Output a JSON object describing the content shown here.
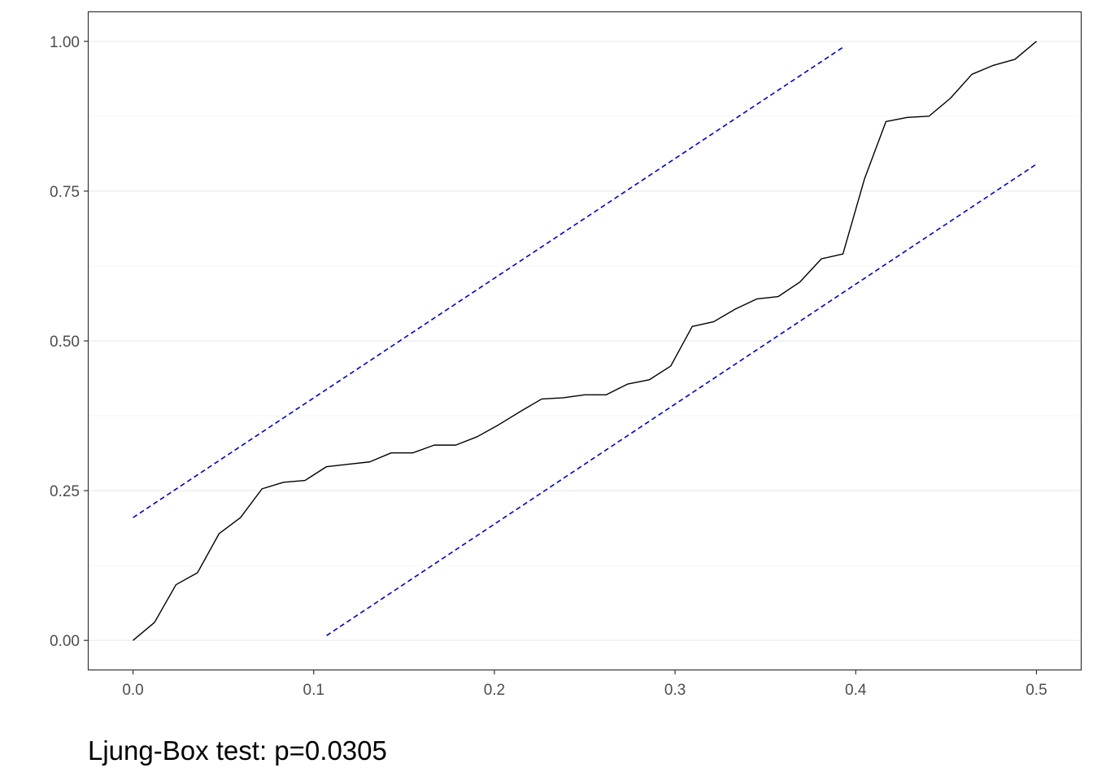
{
  "chart_data": {
    "type": "line",
    "caption": "Ljung-Box test: p=0.0305",
    "xlim": [
      -0.025,
      0.525
    ],
    "ylim": [
      -0.05,
      1.05
    ],
    "x_ticks": [
      0.0,
      0.1,
      0.2,
      0.3,
      0.4,
      0.5
    ],
    "x_tick_labels": [
      "0.0",
      "0.1",
      "0.2",
      "0.3",
      "0.4",
      "0.5"
    ],
    "y_ticks": [
      0.0,
      0.25,
      0.5,
      0.75,
      1.0
    ],
    "y_tick_labels": [
      "0.00",
      "0.25",
      "0.50",
      "0.75",
      "1.00"
    ],
    "y_minor_gridlines": [
      0.125,
      0.375,
      0.625,
      0.875
    ],
    "grid": true,
    "legend": "none",
    "colors": {
      "series_line": "#000000",
      "bound_lines": "#0000cd",
      "major_grid": "#ebebeb",
      "minor_grid": "#f5f5f5",
      "panel_border": "#333333",
      "tick_text": "#4d4d4d"
    },
    "series": [
      {
        "style": "solid",
        "x": [
          0.0,
          0.0119,
          0.0238,
          0.0357,
          0.0476,
          0.0595,
          0.0714,
          0.0833,
          0.0952,
          0.1071,
          0.119,
          0.131,
          0.1429,
          0.1548,
          0.1667,
          0.1786,
          0.1905,
          0.2024,
          0.2143,
          0.2262,
          0.2381,
          0.25,
          0.2619,
          0.2738,
          0.2857,
          0.2976,
          0.3095,
          0.3214,
          0.3333,
          0.3452,
          0.3571,
          0.369,
          0.381,
          0.3929,
          0.4048,
          0.4167,
          0.4286,
          0.4405,
          0.4524,
          0.4643,
          0.4762,
          0.4881,
          0.5
        ],
        "y": [
          0.0,
          0.03,
          0.093,
          0.113,
          0.178,
          0.205,
          0.253,
          0.264,
          0.267,
          0.29,
          0.294,
          0.298,
          0.313,
          0.313,
          0.326,
          0.326,
          0.34,
          0.36,
          0.382,
          0.403,
          0.405,
          0.41,
          0.41,
          0.428,
          0.435,
          0.458,
          0.524,
          0.532,
          0.553,
          0.57,
          0.574,
          0.598,
          0.637,
          0.645,
          0.77,
          0.866,
          0.873,
          0.875,
          0.905,
          0.945,
          0.96,
          0.97,
          1.0
        ]
      },
      {
        "style": "dashed",
        "x": [
          0.0,
          0.3929
        ],
        "y": [
          0.205,
          0.99
        ]
      },
      {
        "style": "dashed",
        "x": [
          0.1071,
          0.5
        ],
        "y": [
          0.008,
          0.795
        ]
      }
    ]
  }
}
